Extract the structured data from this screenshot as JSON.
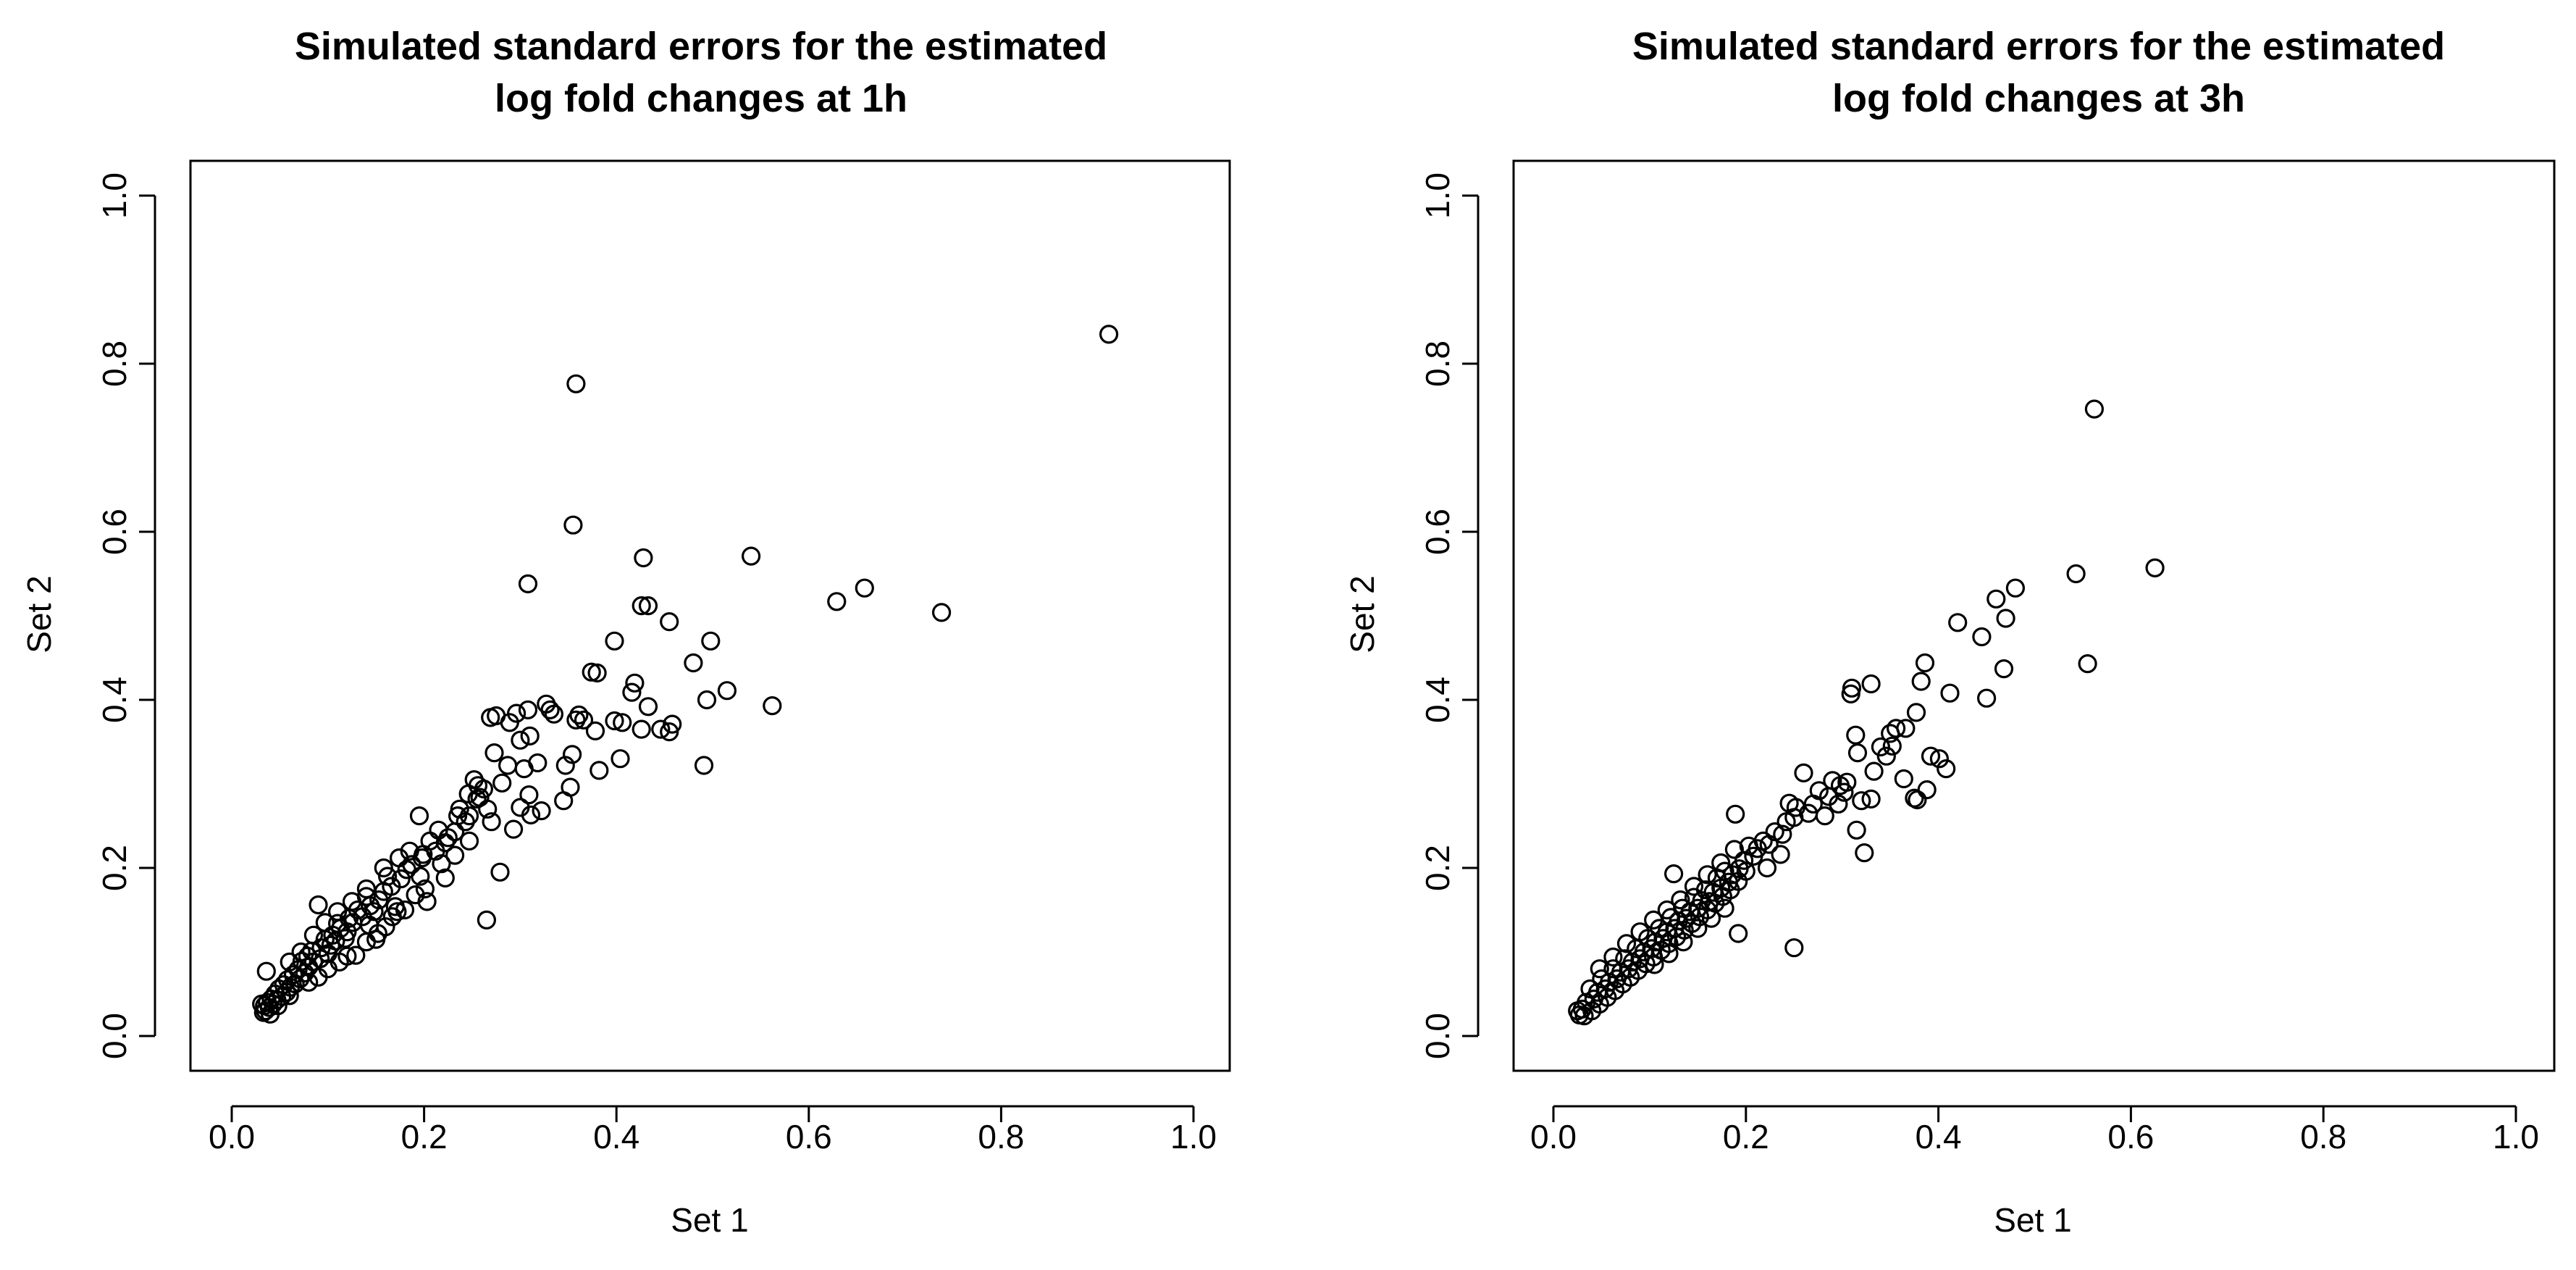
{
  "chart_data": [
    {
      "type": "scatter",
      "title": [
        "Simulated standard errors for the estimated",
        "log fold changes at 1h"
      ],
      "xlabel": "Set 1",
      "ylabel": "Set 2",
      "xlim": [
        0,
        1
      ],
      "ylim": [
        0,
        1
      ],
      "xticks": [
        0.0,
        0.2,
        0.4,
        0.6,
        0.8,
        1.0
      ],
      "yticks": [
        0.0,
        0.2,
        0.4,
        0.6,
        0.8,
        1.0
      ],
      "tick_labels": [
        "0.0",
        "0.2",
        "0.4",
        "0.6",
        "0.8",
        "1.0"
      ],
      "grid": false,
      "marker": "open-circle",
      "color": "#000000",
      "points": [
        [
          0.912,
          0.835
        ],
        [
          0.358,
          0.776
        ],
        [
          0.355,
          0.608
        ],
        [
          0.308,
          0.538
        ],
        [
          0.428,
          0.569
        ],
        [
          0.54,
          0.571
        ],
        [
          0.658,
          0.533
        ],
        [
          0.629,
          0.517
        ],
        [
          0.738,
          0.504
        ],
        [
          0.455,
          0.493
        ],
        [
          0.498,
          0.47
        ],
        [
          0.426,
          0.512
        ],
        [
          0.433,
          0.512
        ],
        [
          0.398,
          0.47
        ],
        [
          0.48,
          0.444
        ],
        [
          0.515,
          0.411
        ],
        [
          0.562,
          0.393
        ],
        [
          0.494,
          0.4
        ],
        [
          0.491,
          0.322
        ],
        [
          0.419,
          0.42
        ],
        [
          0.416,
          0.409
        ],
        [
          0.38,
          0.432
        ],
        [
          0.374,
          0.433
        ],
        [
          0.433,
          0.392
        ],
        [
          0.446,
          0.365
        ],
        [
          0.458,
          0.371
        ],
        [
          0.455,
          0.362
        ],
        [
          0.426,
          0.365
        ],
        [
          0.406,
          0.373
        ],
        [
          0.398,
          0.375
        ],
        [
          0.378,
          0.363
        ],
        [
          0.404,
          0.33
        ],
        [
          0.382,
          0.316
        ],
        [
          0.361,
          0.382
        ],
        [
          0.366,
          0.376
        ],
        [
          0.358,
          0.376
        ],
        [
          0.354,
          0.335
        ],
        [
          0.347,
          0.322
        ],
        [
          0.352,
          0.296
        ],
        [
          0.345,
          0.28
        ],
        [
          0.327,
          0.395
        ],
        [
          0.331,
          0.388
        ],
        [
          0.335,
          0.383
        ],
        [
          0.308,
          0.388
        ],
        [
          0.296,
          0.384
        ],
        [
          0.289,
          0.373
        ],
        [
          0.31,
          0.357
        ],
        [
          0.3,
          0.352
        ],
        [
          0.318,
          0.325
        ],
        [
          0.304,
          0.318
        ],
        [
          0.287,
          0.322
        ],
        [
          0.281,
          0.301
        ],
        [
          0.273,
          0.337
        ],
        [
          0.269,
          0.379
        ],
        [
          0.275,
          0.381
        ],
        [
          0.309,
          0.287
        ],
        [
          0.322,
          0.268
        ],
        [
          0.311,
          0.263
        ],
        [
          0.3,
          0.272
        ],
        [
          0.293,
          0.246
        ],
        [
          0.279,
          0.195
        ],
        [
          0.265,
          0.138
        ],
        [
          0.262,
          0.294
        ],
        [
          0.252,
          0.305
        ],
        [
          0.256,
          0.298
        ],
        [
          0.246,
          0.288
        ],
        [
          0.258,
          0.284
        ],
        [
          0.266,
          0.27
        ],
        [
          0.247,
          0.262
        ],
        [
          0.27,
          0.255
        ],
        [
          0.237,
          0.27
        ],
        [
          0.243,
          0.255
        ],
        [
          0.232,
          0.243
        ],
        [
          0.225,
          0.236
        ],
        [
          0.222,
          0.23
        ],
        [
          0.212,
          0.22
        ],
        [
          0.206,
          0.232
        ],
        [
          0.199,
          0.216
        ],
        [
          0.195,
          0.262
        ],
        [
          0.198,
          0.212
        ],
        [
          0.196,
          0.19
        ],
        [
          0.203,
          0.16
        ],
        [
          0.218,
          0.205
        ],
        [
          0.187,
          0.204
        ],
        [
          0.182,
          0.198
        ],
        [
          0.174,
          0.212
        ],
        [
          0.176,
          0.187
        ],
        [
          0.166,
          0.178
        ],
        [
          0.17,
          0.154
        ],
        [
          0.162,
          0.19
        ],
        [
          0.158,
          0.172
        ],
        [
          0.153,
          0.162
        ],
        [
          0.148,
          0.148
        ],
        [
          0.144,
          0.155
        ],
        [
          0.14,
          0.166
        ],
        [
          0.143,
          0.132
        ],
        [
          0.15,
          0.115
        ],
        [
          0.136,
          0.142
        ],
        [
          0.131,
          0.15
        ],
        [
          0.126,
          0.135
        ],
        [
          0.122,
          0.14
        ],
        [
          0.12,
          0.124
        ],
        [
          0.118,
          0.116
        ],
        [
          0.113,
          0.128
        ],
        [
          0.11,
          0.134
        ],
        [
          0.108,
          0.113
        ],
        [
          0.105,
          0.12
        ],
        [
          0.103,
          0.108
        ],
        [
          0.1,
          0.098
        ],
        [
          0.097,
          0.115
        ],
        [
          0.093,
          0.105
        ],
        [
          0.092,
          0.092
        ],
        [
          0.09,
          0.156
        ],
        [
          0.085,
          0.088
        ],
        [
          0.083,
          0.101
        ],
        [
          0.08,
          0.082
        ],
        [
          0.079,
          0.095
        ],
        [
          0.076,
          0.075
        ],
        [
          0.073,
          0.089
        ],
        [
          0.071,
          0.068
        ],
        [
          0.069,
          0.079
        ],
        [
          0.066,
          0.062
        ],
        [
          0.064,
          0.073
        ],
        [
          0.061,
          0.058
        ],
        [
          0.058,
          0.067
        ],
        [
          0.057,
          0.052
        ],
        [
          0.054,
          0.061
        ],
        [
          0.052,
          0.047
        ],
        [
          0.049,
          0.056
        ],
        [
          0.047,
          0.043
        ],
        [
          0.045,
          0.05
        ],
        [
          0.043,
          0.038
        ],
        [
          0.041,
          0.044
        ],
        [
          0.039,
          0.034
        ],
        [
          0.037,
          0.04
        ],
        [
          0.035,
          0.03
        ],
        [
          0.034,
          0.036
        ],
        [
          0.033,
          0.028
        ],
        [
          0.04,
          0.026
        ],
        [
          0.031,
          0.038
        ],
        [
          0.036,
          0.077
        ],
        [
          0.06,
          0.088
        ],
        [
          0.072,
          0.1
        ],
        [
          0.085,
          0.12
        ],
        [
          0.097,
          0.135
        ],
        [
          0.11,
          0.148
        ],
        [
          0.125,
          0.16
        ],
        [
          0.14,
          0.175
        ],
        [
          0.158,
          0.2
        ],
        [
          0.185,
          0.22
        ],
        [
          0.215,
          0.245
        ],
        [
          0.235,
          0.262
        ],
        [
          0.255,
          0.282
        ],
        [
          0.222,
          0.188
        ],
        [
          0.201,
          0.175
        ],
        [
          0.18,
          0.15
        ],
        [
          0.16,
          0.13
        ],
        [
          0.14,
          0.112
        ],
        [
          0.12,
          0.095
        ],
        [
          0.1,
          0.08
        ],
        [
          0.08,
          0.064
        ],
        [
          0.06,
          0.048
        ],
        [
          0.048,
          0.036
        ],
        [
          0.129,
          0.096
        ],
        [
          0.167,
          0.142
        ],
        [
          0.191,
          0.168
        ],
        [
          0.232,
          0.215
        ],
        [
          0.247,
          0.232
        ],
        [
          0.09,
          0.07
        ],
        [
          0.112,
          0.088
        ],
        [
          0.152,
          0.122
        ],
        [
          0.172,
          0.148
        ]
      ]
    },
    {
      "type": "scatter",
      "title": [
        "Simulated standard errors for the estimated",
        "log fold changes at 3h"
      ],
      "xlabel": "Set 1",
      "ylabel": "Set 2",
      "xlim": [
        0,
        1
      ],
      "ylim": [
        0,
        1
      ],
      "xticks": [
        0.0,
        0.2,
        0.4,
        0.6,
        0.8,
        1.0
      ],
      "yticks": [
        0.0,
        0.2,
        0.4,
        0.6,
        0.8,
        1.0
      ],
      "tick_labels": [
        "0.0",
        "0.2",
        "0.4",
        "0.6",
        "0.8",
        "1.0"
      ],
      "grid": false,
      "marker": "open-circle",
      "color": "#000000",
      "points": [
        [
          0.562,
          0.746
        ],
        [
          0.625,
          0.557
        ],
        [
          0.543,
          0.55
        ],
        [
          0.48,
          0.533
        ],
        [
          0.46,
          0.52
        ],
        [
          0.47,
          0.497
        ],
        [
          0.42,
          0.492
        ],
        [
          0.445,
          0.475
        ],
        [
          0.555,
          0.443
        ],
        [
          0.468,
          0.437
        ],
        [
          0.386,
          0.444
        ],
        [
          0.382,
          0.422
        ],
        [
          0.45,
          0.402
        ],
        [
          0.412,
          0.408
        ],
        [
          0.33,
          0.419
        ],
        [
          0.31,
          0.414
        ],
        [
          0.309,
          0.407
        ],
        [
          0.377,
          0.385
        ],
        [
          0.356,
          0.366
        ],
        [
          0.35,
          0.36
        ],
        [
          0.366,
          0.366
        ],
        [
          0.314,
          0.358
        ],
        [
          0.34,
          0.344
        ],
        [
          0.352,
          0.345
        ],
        [
          0.392,
          0.333
        ],
        [
          0.401,
          0.33
        ],
        [
          0.408,
          0.318
        ],
        [
          0.388,
          0.293
        ],
        [
          0.378,
          0.281
        ],
        [
          0.375,
          0.283
        ],
        [
          0.364,
          0.306
        ],
        [
          0.333,
          0.315
        ],
        [
          0.316,
          0.337
        ],
        [
          0.33,
          0.282
        ],
        [
          0.32,
          0.28
        ],
        [
          0.315,
          0.245
        ],
        [
          0.323,
          0.218
        ],
        [
          0.305,
          0.302
        ],
        [
          0.298,
          0.298
        ],
        [
          0.29,
          0.304
        ],
        [
          0.286,
          0.285
        ],
        [
          0.276,
          0.292
        ],
        [
          0.27,
          0.276
        ],
        [
          0.26,
          0.313
        ],
        [
          0.265,
          0.265
        ],
        [
          0.252,
          0.272
        ],
        [
          0.25,
          0.26
        ],
        [
          0.245,
          0.277
        ],
        [
          0.242,
          0.255
        ],
        [
          0.238,
          0.24
        ],
        [
          0.23,
          0.243
        ],
        [
          0.224,
          0.228
        ],
        [
          0.218,
          0.232
        ],
        [
          0.212,
          0.223
        ],
        [
          0.208,
          0.214
        ],
        [
          0.203,
          0.226
        ],
        [
          0.198,
          0.209
        ],
        [
          0.193,
          0.199
        ],
        [
          0.189,
          0.264
        ],
        [
          0.186,
          0.192
        ],
        [
          0.182,
          0.183
        ],
        [
          0.178,
          0.196
        ],
        [
          0.174,
          0.176
        ],
        [
          0.17,
          0.188
        ],
        [
          0.166,
          0.171
        ],
        [
          0.162,
          0.16
        ],
        [
          0.158,
          0.174
        ],
        [
          0.154,
          0.161
        ],
        [
          0.15,
          0.152
        ],
        [
          0.146,
          0.165
        ],
        [
          0.142,
          0.148
        ],
        [
          0.138,
          0.14
        ],
        [
          0.134,
          0.152
        ],
        [
          0.13,
          0.137
        ],
        [
          0.126,
          0.128
        ],
        [
          0.122,
          0.141
        ],
        [
          0.118,
          0.124
        ],
        [
          0.114,
          0.116
        ],
        [
          0.11,
          0.128
        ],
        [
          0.106,
          0.112
        ],
        [
          0.102,
          0.104
        ],
        [
          0.098,
          0.116
        ],
        [
          0.094,
          0.1
        ],
        [
          0.09,
          0.092
        ],
        [
          0.086,
          0.104
        ],
        [
          0.082,
          0.088
        ],
        [
          0.078,
          0.08
        ],
        [
          0.074,
          0.092
        ],
        [
          0.07,
          0.076
        ],
        [
          0.066,
          0.068
        ],
        [
          0.062,
          0.08
        ],
        [
          0.058,
          0.064
        ],
        [
          0.054,
          0.056
        ],
        [
          0.05,
          0.068
        ],
        [
          0.046,
          0.052
        ],
        [
          0.042,
          0.044
        ],
        [
          0.038,
          0.056
        ],
        [
          0.034,
          0.04
        ],
        [
          0.03,
          0.032
        ],
        [
          0.027,
          0.025
        ],
        [
          0.025,
          0.03
        ],
        [
          0.032,
          0.024
        ],
        [
          0.04,
          0.03
        ],
        [
          0.048,
          0.038
        ],
        [
          0.056,
          0.046
        ],
        [
          0.064,
          0.054
        ],
        [
          0.072,
          0.062
        ],
        [
          0.08,
          0.07
        ],
        [
          0.088,
          0.078
        ],
        [
          0.096,
          0.086
        ],
        [
          0.104,
          0.094
        ],
        [
          0.112,
          0.102
        ],
        [
          0.12,
          0.11
        ],
        [
          0.128,
          0.118
        ],
        [
          0.136,
          0.126
        ],
        [
          0.144,
          0.134
        ],
        [
          0.152,
          0.142
        ],
        [
          0.16,
          0.15
        ],
        [
          0.168,
          0.158
        ],
        [
          0.176,
          0.166
        ],
        [
          0.184,
          0.174
        ],
        [
          0.192,
          0.184
        ],
        [
          0.2,
          0.196
        ],
        [
          0.104,
          0.138
        ],
        [
          0.118,
          0.15
        ],
        [
          0.132,
          0.162
        ],
        [
          0.146,
          0.178
        ],
        [
          0.16,
          0.192
        ],
        [
          0.174,
          0.206
        ],
        [
          0.188,
          0.222
        ],
        [
          0.09,
          0.124
        ],
        [
          0.076,
          0.11
        ],
        [
          0.062,
          0.094
        ],
        [
          0.048,
          0.08
        ],
        [
          0.125,
          0.193
        ],
        [
          0.15,
          0.128
        ],
        [
          0.135,
          0.112
        ],
        [
          0.12,
          0.098
        ],
        [
          0.105,
          0.085
        ],
        [
          0.164,
          0.14
        ],
        [
          0.178,
          0.152
        ],
        [
          0.192,
          0.122
        ],
        [
          0.25,
          0.105
        ],
        [
          0.222,
          0.2
        ],
        [
          0.236,
          0.216
        ],
        [
          0.282,
          0.262
        ],
        [
          0.296,
          0.276
        ],
        [
          0.346,
          0.333
        ],
        [
          0.302,
          0.29
        ]
      ]
    }
  ]
}
